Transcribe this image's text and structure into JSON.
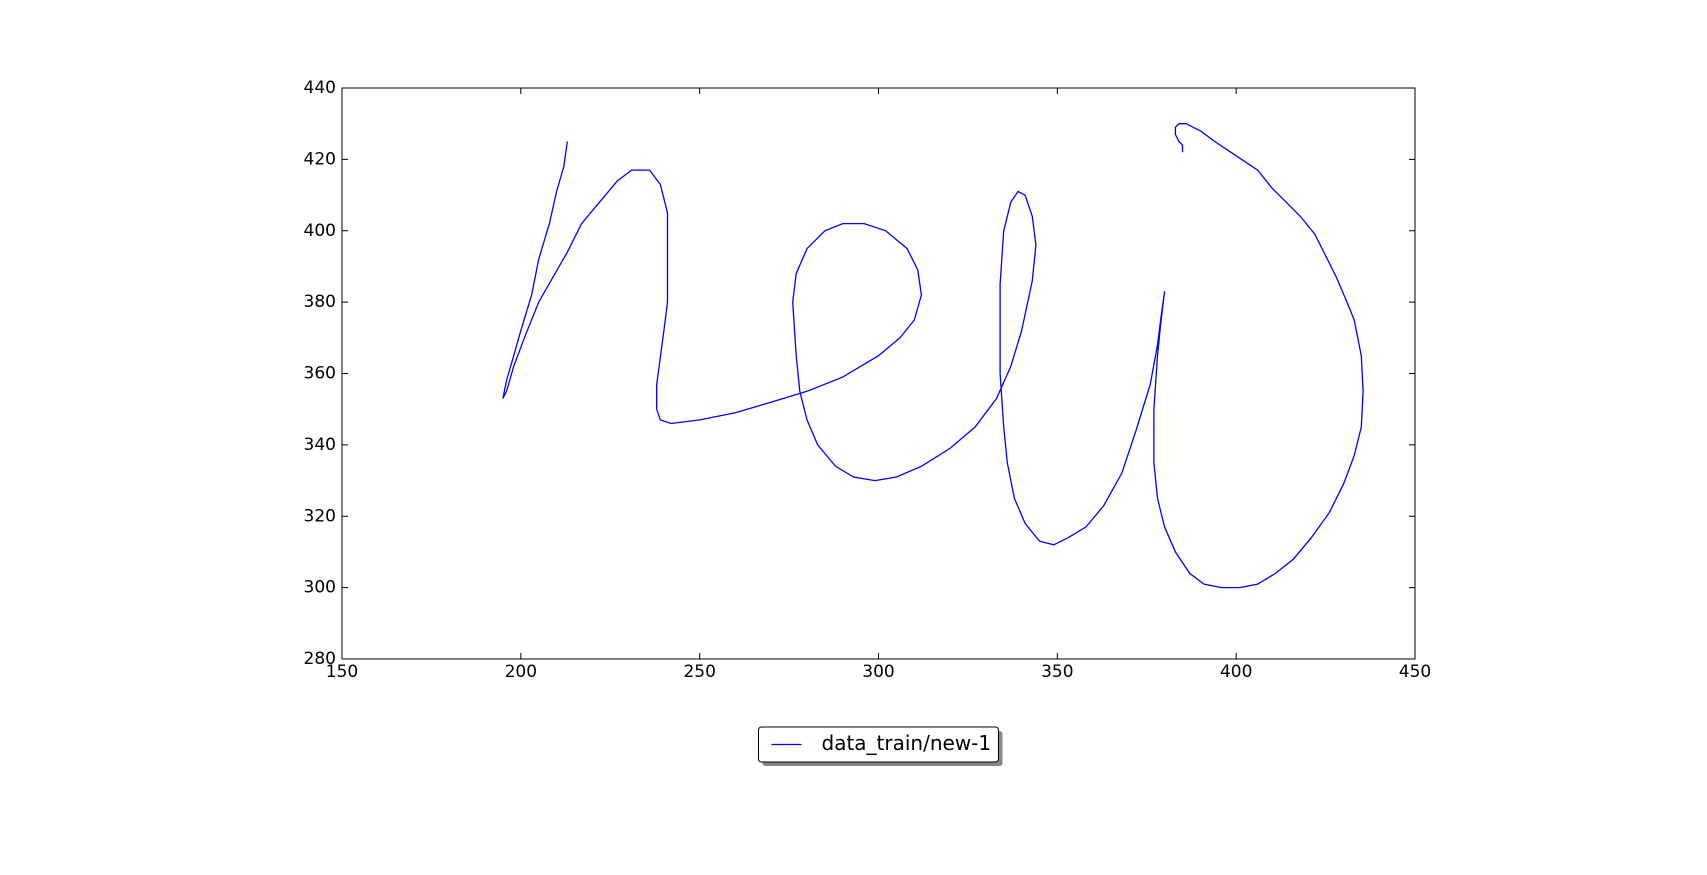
{
  "chart_data": {
    "type": "line",
    "x": [
      213,
      212,
      210,
      208,
      205,
      203,
      200,
      198,
      196,
      195,
      196,
      198,
      201,
      205,
      209,
      213,
      217,
      222,
      227,
      231,
      236,
      239,
      241,
      241,
      240,
      238,
      238,
      239,
      242,
      250,
      260,
      270,
      280,
      290,
      300,
      306,
      310,
      312,
      311,
      308,
      302,
      296,
      290,
      285,
      280,
      277,
      276,
      277,
      278,
      280,
      283,
      288,
      293,
      299,
      305,
      312,
      320,
      327,
      333,
      337,
      340,
      343,
      344,
      343,
      341,
      339,
      337,
      335,
      334,
      334,
      335,
      336,
      338,
      341,
      345,
      349,
      353,
      358,
      363,
      368,
      372,
      376,
      378,
      379,
      380,
      379,
      378,
      377,
      377,
      378,
      380,
      383,
      387,
      391,
      396,
      401,
      406,
      411,
      416,
      421,
      426,
      430,
      433,
      435,
      435.5,
      435,
      433,
      431,
      428,
      425,
      422,
      418,
      414,
      410,
      406,
      400,
      394,
      390,
      388,
      386,
      384,
      383,
      383,
      384,
      385,
      385
    ],
    "series": [
      {
        "name": "data_train/new-1",
        "color": "#0000ff",
        "values": [
          425,
          418,
          411,
          402,
          392,
          382,
          372,
          365,
          358,
          353,
          355,
          362,
          370,
          380,
          387,
          394,
          402,
          408,
          414,
          417,
          417,
          413,
          405,
          380,
          372,
          357,
          350,
          347,
          346,
          347,
          349,
          352,
          355,
          359,
          365,
          370,
          375,
          382,
          389,
          395,
          400,
          402,
          402,
          400,
          395,
          388,
          380,
          365,
          355,
          347,
          340,
          334,
          331,
          330,
          331,
          334,
          339,
          345,
          353,
          362,
          372,
          386,
          396,
          404,
          410,
          411,
          408,
          400,
          385,
          360,
          345,
          335,
          325,
          318,
          313,
          312,
          314,
          317,
          323,
          332,
          344,
          357,
          368,
          376,
          383,
          375,
          365,
          350,
          335,
          325,
          317,
          310,
          304,
          301,
          300,
          300,
          301,
          304,
          308,
          314,
          321,
          329,
          337,
          345,
          355,
          365,
          375,
          380,
          387,
          393,
          399,
          404,
          408,
          412,
          417,
          421,
          425,
          428,
          429,
          430,
          430,
          429,
          427,
          425,
          424,
          422
        ]
      }
    ],
    "xlim": [
      150,
      450
    ],
    "xticks": [
      150,
      200,
      250,
      300,
      350,
      400,
      450
    ],
    "ylim": [
      280,
      440
    ],
    "yticks": [
      280,
      300,
      320,
      340,
      360,
      380,
      400,
      420,
      440
    ],
    "grid": false,
    "legend": "lower center"
  }
}
